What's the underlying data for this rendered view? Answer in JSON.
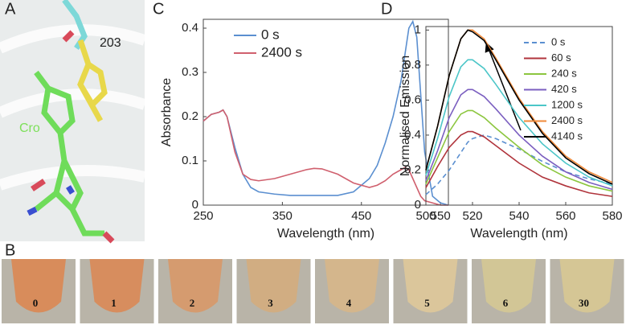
{
  "panel_labels": [
    "A",
    "B",
    "C",
    "D"
  ],
  "structure_labels": [
    "203",
    "Cro"
  ],
  "photo_labels": [
    "0",
    "1",
    "2",
    "3",
    "4",
    "5",
    "6",
    "30"
  ],
  "chart_data": [
    {
      "type": "line",
      "xlabel": "Wavelength (nm)",
      "ylabel": "Absorbance",
      "x": [
        250,
        260,
        270,
        275,
        280,
        290,
        300,
        310,
        320,
        340,
        360,
        380,
        390,
        400,
        420,
        440,
        460,
        470,
        480,
        490,
        500,
        505,
        510,
        515,
        520,
        525,
        530,
        540,
        550,
        560
      ],
      "series": [
        {
          "name": "0 s",
          "color": "#5b8fd0",
          "values": [
            0.19,
            0.205,
            0.21,
            0.215,
            0.2,
            0.13,
            0.07,
            0.04,
            0.03,
            0.025,
            0.022,
            0.022,
            0.022,
            0.022,
            0.022,
            0.03,
            0.06,
            0.09,
            0.14,
            0.2,
            0.28,
            0.34,
            0.4,
            0.415,
            0.38,
            0.25,
            0.12,
            0.02,
            0.005,
            0
          ]
        },
        {
          "name": "2400 s",
          "color": "#d0606e",
          "values": [
            0.19,
            0.205,
            0.21,
            0.215,
            0.2,
            0.12,
            0.07,
            0.058,
            0.055,
            0.06,
            0.07,
            0.08,
            0.083,
            0.082,
            0.07,
            0.05,
            0.04,
            0.045,
            0.055,
            0.07,
            0.08,
            0.085,
            0.08,
            0.06,
            0.04,
            0.02,
            0.01,
            0.005,
            0,
            0
          ]
        }
      ],
      "xlim": [
        250,
        560
      ],
      "ylim": [
        0,
        0.42
      ],
      "xticks": [
        250,
        350,
        450,
        550
      ],
      "yticks": [
        0,
        0.1,
        0.2,
        0.3,
        0.4
      ],
      "legend": "upper left"
    },
    {
      "type": "line",
      "xlabel": "Wavelength (nm)",
      "ylabel": "Normalised Emission",
      "x": [
        500,
        505,
        510,
        515,
        518,
        520,
        525,
        530,
        540,
        550,
        560,
        570,
        580
      ],
      "series": [
        {
          "name": "0 s",
          "color": "#5b8fd0",
          "linestyle": "dashed",
          "values": [
            0.06,
            0.12,
            0.2,
            0.3,
            0.36,
            0.38,
            0.4,
            0.38,
            0.32,
            0.25,
            0.19,
            0.15,
            0.12
          ]
        },
        {
          "name": "60 s",
          "color": "#b0343c",
          "values": [
            0.1,
            0.22,
            0.33,
            0.4,
            0.42,
            0.42,
            0.39,
            0.34,
            0.24,
            0.16,
            0.11,
            0.07,
            0.05
          ]
        },
        {
          "name": "240 s",
          "color": "#8cc63f",
          "values": [
            0.12,
            0.27,
            0.42,
            0.52,
            0.54,
            0.54,
            0.5,
            0.44,
            0.33,
            0.23,
            0.16,
            0.11,
            0.08
          ]
        },
        {
          "name": "420 s",
          "color": "#7b5fc0",
          "values": [
            0.14,
            0.31,
            0.5,
            0.63,
            0.66,
            0.66,
            0.62,
            0.55,
            0.4,
            0.28,
            0.19,
            0.13,
            0.09
          ]
        },
        {
          "name": "1200 s",
          "color": "#4cc6c8",
          "values": [
            0.17,
            0.38,
            0.62,
            0.79,
            0.83,
            0.83,
            0.78,
            0.69,
            0.5,
            0.35,
            0.24,
            0.16,
            0.11
          ]
        },
        {
          "name": "2400 s",
          "color": "#f08a3a",
          "values": [
            0.2,
            0.45,
            0.74,
            0.95,
            1.0,
            1.0,
            0.95,
            0.84,
            0.61,
            0.42,
            0.28,
            0.19,
            0.13
          ]
        },
        {
          "name": "4140 s",
          "color": "#000000",
          "values": [
            0.2,
            0.45,
            0.74,
            0.95,
            1.0,
            0.99,
            0.94,
            0.83,
            0.6,
            0.41,
            0.27,
            0.18,
            0.12
          ]
        }
      ],
      "xlim": [
        500,
        580
      ],
      "ylim": [
        0,
        1.02
      ],
      "xticks": [
        500,
        520,
        540,
        560,
        580
      ],
      "yticks": [
        0,
        0.2,
        0.4,
        0.6,
        0.8,
        1
      ],
      "legend": "upper right"
    }
  ]
}
